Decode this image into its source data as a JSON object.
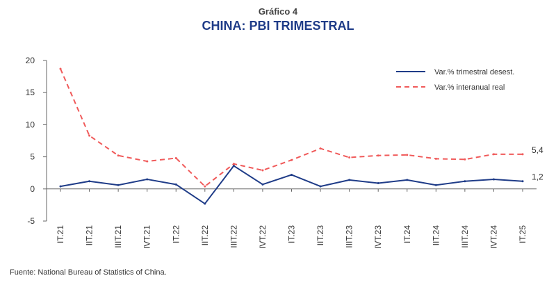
{
  "header": {
    "subtitle": "Gráfico 4",
    "title": "CHINA: PBI TRIMESTRAL"
  },
  "source": "Fuente: National Bureau of Statistics of China.",
  "chart_data": {
    "type": "line",
    "title": "CHINA: PBI TRIMESTRAL",
    "categories": [
      "IT.21",
      "IIT.21",
      "IIIT.21",
      "IVT.21",
      "IT.22",
      "IIT.22",
      "IIIT.22",
      "IVT.22",
      "IT.23",
      "IIT.23",
      "IIIT.23",
      "IVT.23",
      "IT.24",
      "IIT.24",
      "IIIT.24",
      "IVT.24",
      "IT.25"
    ],
    "ylim": [
      -5,
      20
    ],
    "yticks": [
      -5,
      0,
      5,
      10,
      15,
      20
    ],
    "grid": false,
    "legend_position": "top-right",
    "series": [
      {
        "name": "Var.% trimestral desest.",
        "color": "#1f3c88",
        "style": "solid",
        "values": [
          0.4,
          1.2,
          0.6,
          1.5,
          0.7,
          -2.3,
          3.6,
          0.7,
          2.2,
          0.4,
          1.4,
          0.9,
          1.4,
          0.6,
          1.2,
          1.5,
          1.2
        ],
        "end_label": "1,2"
      },
      {
        "name": "Var.% interanual real",
        "color": "#f05a5a",
        "style": "dashed",
        "values": [
          18.7,
          8.3,
          5.2,
          4.3,
          4.8,
          0.4,
          3.9,
          2.9,
          4.5,
          6.3,
          4.9,
          5.2,
          5.3,
          4.7,
          4.6,
          5.4,
          5.4
        ],
        "end_label": "5,4"
      }
    ]
  }
}
